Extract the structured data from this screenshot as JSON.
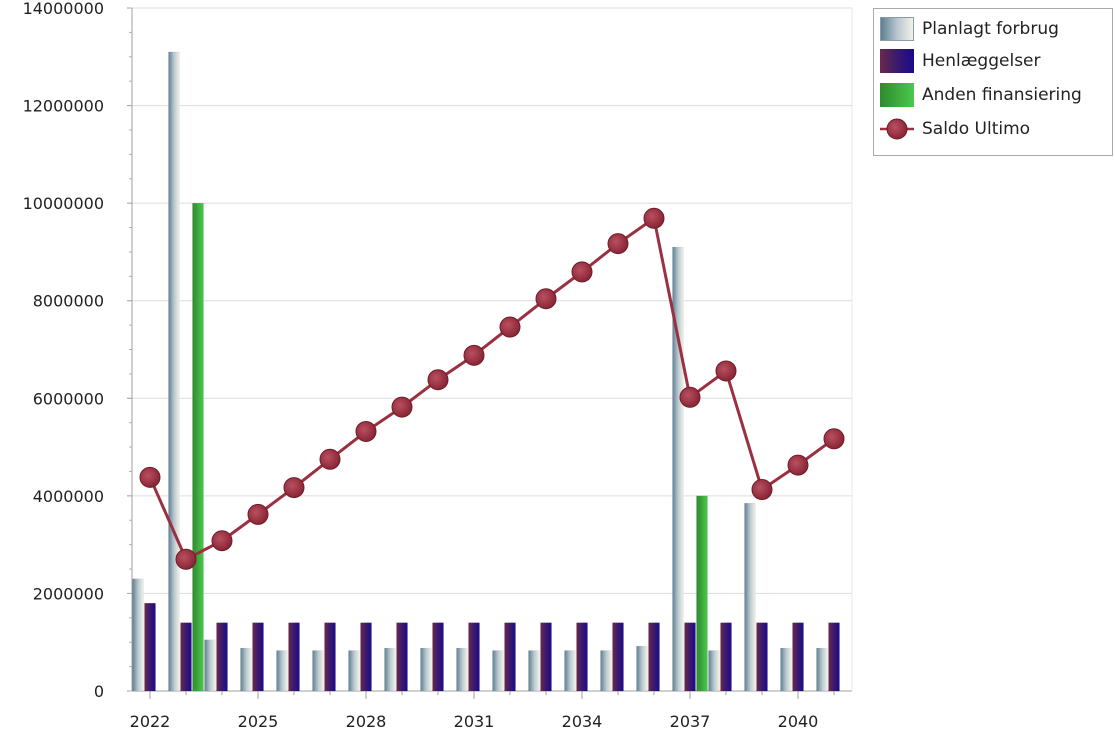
{
  "chart_data": {
    "type": "bar",
    "x": [
      2022,
      2023,
      2024,
      2025,
      2026,
      2027,
      2028,
      2029,
      2030,
      2031,
      2032,
      2033,
      2034,
      2035,
      2036,
      2037,
      2038,
      2039,
      2040,
      2041
    ],
    "x_tick_labels": [
      "2022",
      "2025",
      "2028",
      "2031",
      "2034",
      "2037",
      "2040"
    ],
    "y_tick_labels": [
      "0",
      "2000000",
      "4000000",
      "6000000",
      "8000000",
      "10000000",
      "12000000",
      "14000000"
    ],
    "ylim": [
      0,
      14000000
    ],
    "grid": true,
    "legend_position": "right",
    "series": [
      {
        "name": "Planlagt forbrug",
        "kind": "bar",
        "color": "#7f96a6",
        "values": [
          2300000,
          13100000,
          1050000,
          880000,
          830000,
          830000,
          830000,
          880000,
          880000,
          880000,
          830000,
          830000,
          830000,
          830000,
          920000,
          9100000,
          830000,
          3850000,
          880000,
          880000
        ]
      },
      {
        "name": "Henlæggelser",
        "kind": "bar",
        "color": "#3a1a6e",
        "values": [
          1800000,
          1400000,
          1400000,
          1400000,
          1400000,
          1400000,
          1400000,
          1400000,
          1400000,
          1400000,
          1400000,
          1400000,
          1400000,
          1400000,
          1400000,
          1400000,
          1400000,
          1400000,
          1400000,
          1400000
        ]
      },
      {
        "name": "Anden finansiering",
        "kind": "bar",
        "color": "#3cb043",
        "values": [
          0,
          10000000,
          0,
          0,
          0,
          0,
          0,
          0,
          0,
          0,
          0,
          0,
          0,
          0,
          0,
          4000000,
          0,
          0,
          0,
          0
        ]
      },
      {
        "name": "Saldo Ultimo",
        "kind": "line",
        "color": "#9a3040",
        "values": [
          4380000,
          2700000,
          3080000,
          3620000,
          4170000,
          4750000,
          5320000,
          5820000,
          6380000,
          6880000,
          7460000,
          8040000,
          8590000,
          9170000,
          9690000,
          6020000,
          6560000,
          4130000,
          4630000,
          5170000
        ]
      }
    ]
  }
}
